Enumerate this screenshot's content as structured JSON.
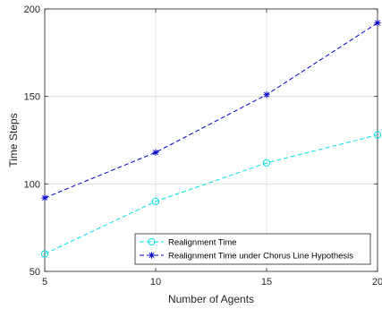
{
  "chart_data": {
    "type": "line",
    "x": [
      5,
      10,
      15,
      20
    ],
    "series": [
      {
        "name": "Realignment Time",
        "values": [
          60,
          90,
          112,
          128
        ],
        "color": "#00e5e5",
        "marker": "circle",
        "line_style": "dashed"
      },
      {
        "name": "Realignment Time under Chorus Line Hypothesis",
        "values": [
          92,
          118,
          151,
          192
        ],
        "color": "#0000cc",
        "marker": "asterisk",
        "line_style": "dashed"
      }
    ],
    "xlabel": "Number of Agents",
    "ylabel": "Time Steps",
    "xlim": [
      5,
      20
    ],
    "ylim": [
      50,
      200
    ],
    "xticks": [
      "5",
      "10",
      "15",
      "20"
    ],
    "yticks": [
      "50",
      "100",
      "150",
      "200"
    ],
    "grid": true,
    "legend_position": "bottom-right"
  }
}
